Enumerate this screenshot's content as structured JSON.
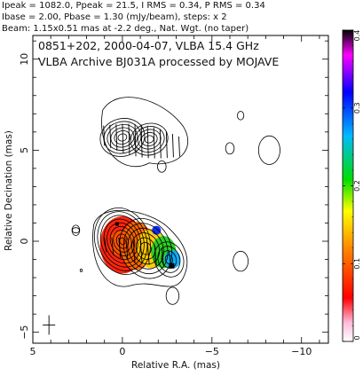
{
  "header": {
    "line1": "Ipeak = 1082.0, Ppeak = 21.5, I RMS = 0.34, P RMS = 0.34",
    "line2": "Ibase = 2.00, Pbase = 1.30 (mJy/beam), steps: x 2",
    "line3": "Beam: 1.15x0.51 mas at -2.2 deg., Nat. Wgt. (no taper)"
  },
  "annotation": {
    "line1": "0851+202, 2000-04-07, VLBA 15.4 GHz",
    "line2": "VLBA Archive BJ031A processed by MOJAVE"
  },
  "chart_data": {
    "type": "heatmap",
    "xlabel": "Relative R.A. (mas)",
    "ylabel": "Relative Decination (mas)",
    "xlim": [
      5,
      -11.5
    ],
    "ylim": [
      -5.6,
      11.3
    ],
    "x_ticks": [
      5,
      0,
      -5,
      -10
    ],
    "x_tick_labels": [
      "5",
      "0",
      "−5",
      "−10"
    ],
    "y_ticks": [
      -5,
      0,
      5,
      10
    ],
    "y_tick_labels": [
      "−5",
      "0",
      "5",
      "10"
    ],
    "colorbar": {
      "range": [
        0,
        0.4
      ],
      "ticks": [
        0,
        0.1,
        0.2,
        0.3,
        0.4
      ],
      "tick_labels": [
        "0",
        "0.1",
        "0.2",
        "0.3",
        "0.4"
      ],
      "colors": [
        "#ffffff",
        "#ff88aa",
        "#ff0000",
        "#ff8800",
        "#ffff00",
        "#00dd00",
        "#00bbff",
        "#0000ff",
        "#ff00ff",
        "#000000"
      ]
    },
    "total_intensity_components": [
      {
        "x": 0.0,
        "y": 0.0,
        "levels": 9
      },
      {
        "x": -1.5,
        "y": -0.3,
        "levels": 6
      },
      {
        "x": -2.7,
        "y": -1.1,
        "levels": 4
      }
    ],
    "polarization_components": [
      {
        "x": 0.0,
        "y": 5.7,
        "levels": 6
      },
      {
        "x": -1.5,
        "y": 5.6,
        "levels": 5
      }
    ],
    "isolated_contours": [
      {
        "x": 2.6,
        "y": 0.6,
        "r": 0.18
      },
      {
        "x": -2.2,
        "y": 4.1,
        "r": 0.2
      },
      {
        "x": -2.8,
        "y": -3.0,
        "r": 0.3
      },
      {
        "x": -6.6,
        "y": 6.9,
        "r": 0.15
      },
      {
        "x": -6.6,
        "y": -1.1,
        "r": 0.35
      },
      {
        "x": -8.2,
        "y": 5.0,
        "r": 0.5
      },
      {
        "x": -6.0,
        "y": 5.1,
        "r": 0.2
      },
      {
        "x": 2.3,
        "y": -1.6,
        "r": 0.05
      }
    ],
    "polarized_flux_peak": {
      "x": 0.6,
      "y": 0.0
    },
    "ev_peak_vectors_color_frac": [
      {
        "x": 0.3,
        "y": 0.2,
        "frac": 0.12
      },
      {
        "x": -1.0,
        "y": -0.2,
        "frac": 0.18
      },
      {
        "x": -2.0,
        "y": -0.5,
        "frac": 0.24
      },
      {
        "x": -2.6,
        "y": -0.9,
        "frac": 0.3
      }
    ],
    "beam_cross_center": {
      "x": 4.1,
      "y": -4.6
    }
  }
}
